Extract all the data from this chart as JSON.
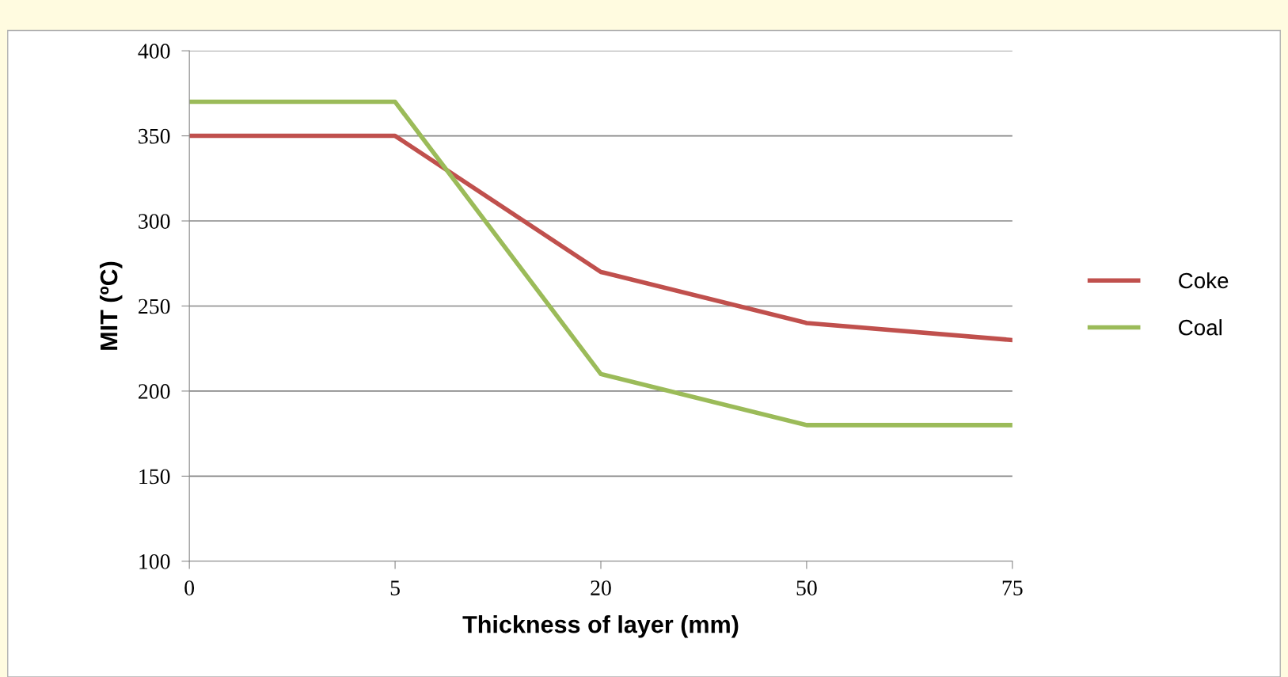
{
  "chart_data": {
    "type": "line",
    "xlabel": "Thickness of layer (mm)",
    "ylabel": "MIT (ºC)",
    "categories": [
      "0",
      "5",
      "20",
      "50",
      "75"
    ],
    "series": [
      {
        "name": "Coke",
        "color": "#c0504d",
        "values": [
          350,
          350,
          270,
          240,
          230
        ]
      },
      {
        "name": "Coal",
        "color": "#9bbb59",
        "values": [
          370,
          370,
          210,
          180,
          180
        ]
      }
    ],
    "ylim": [
      100,
      400
    ],
    "yticks": [
      100,
      150,
      200,
      250,
      300,
      350,
      400
    ],
    "grid": "y",
    "legend": "right",
    "marker": "none",
    "line_style": "solid"
  }
}
